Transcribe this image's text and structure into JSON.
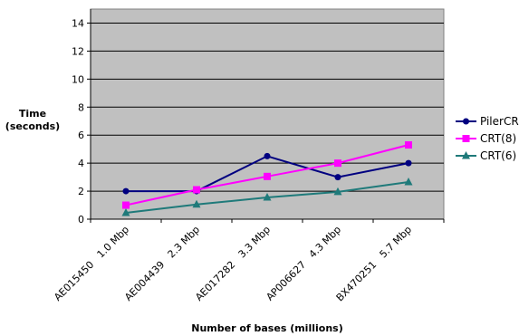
{
  "chart_data": {
    "type": "line",
    "title": "",
    "xlabel": "Number of bases (millions)",
    "ylabel_line1": "Time",
    "ylabel_line2": "(seconds)",
    "ylim": [
      0,
      15
    ],
    "yticks": [
      0,
      2,
      4,
      6,
      8,
      10,
      12,
      14
    ],
    "grid": true,
    "legend_position": "right",
    "categories": [
      "AE015450   1.0 Mbp",
      "AE004439   2.3 Mbp",
      "AE017282   3.3 Mbp",
      "AP006627   4.3 Mbp",
      "BX470251   5.7 Mbp"
    ],
    "series": [
      {
        "name": "PilerCR",
        "color": "#000080",
        "marker": "circle",
        "values": [
          2.0,
          2.0,
          4.5,
          3.0,
          4.0
        ]
      },
      {
        "name": "CRT(8)",
        "color": "#ff00ff",
        "marker": "square",
        "values": [
          1.0,
          2.1,
          3.05,
          4.0,
          5.3
        ]
      },
      {
        "name": "CRT(6)",
        "color": "#1f7a7a",
        "marker": "triangle",
        "values": [
          0.45,
          1.05,
          1.55,
          1.95,
          2.65
        ]
      }
    ]
  }
}
